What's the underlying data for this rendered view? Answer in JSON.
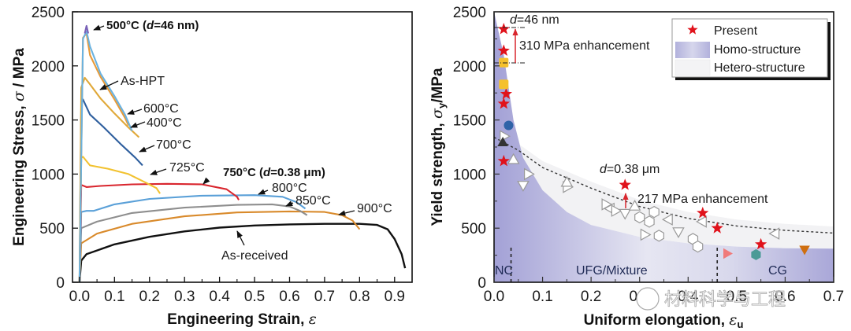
{
  "chart_data": [
    {
      "type": "line",
      "title": "",
      "xlabel": "Engineering Strain, ε",
      "ylabel": "Engineering Stress, σ / MPa",
      "xlim": [
        -0.02,
        0.95
      ],
      "ylim": [
        0,
        2500
      ],
      "xticks": [
        "0.0",
        "0.1",
        "0.2",
        "0.3",
        "0.4",
        "0.5",
        "0.6",
        "0.7",
        "0.8",
        "0.9"
      ],
      "xtick_values": [
        0,
        0.1,
        0.2,
        0.3,
        0.4,
        0.5,
        0.6,
        0.7,
        0.8,
        0.9
      ],
      "yticks": [
        "0",
        "500",
        "1000",
        "1500",
        "2000",
        "2500"
      ],
      "ytick_values": [
        0,
        500,
        1000,
        1500,
        2000,
        2500
      ],
      "grid": false,
      "series": [
        {
          "name": "As-received",
          "label": "As-received",
          "color": "#111111",
          "points": [
            [
              0,
              0
            ],
            [
              0.005,
              200
            ],
            [
              0.02,
              260
            ],
            [
              0.1,
              350
            ],
            [
              0.2,
              420
            ],
            [
              0.3,
              470
            ],
            [
              0.4,
              505
            ],
            [
              0.5,
              525
            ],
            [
              0.6,
              535
            ],
            [
              0.7,
              540
            ],
            [
              0.8,
              540
            ],
            [
              0.85,
              530
            ],
            [
              0.88,
              490
            ],
            [
              0.9,
              400
            ],
            [
              0.92,
              260
            ],
            [
              0.93,
              130
            ]
          ]
        },
        {
          "name": "900°C",
          "label": "900°C",
          "color": "#d98a2b",
          "points": [
            [
              0,
              0
            ],
            [
              0.005,
              360
            ],
            [
              0.05,
              450
            ],
            [
              0.15,
              540
            ],
            [
              0.3,
              610
            ],
            [
              0.45,
              645
            ],
            [
              0.6,
              655
            ],
            [
              0.7,
              650
            ],
            [
              0.75,
              620
            ],
            [
              0.78,
              570
            ],
            [
              0.8,
              490
            ]
          ]
        },
        {
          "name": "850°C",
          "label": "850°C",
          "color": "#8e8e8e",
          "points": [
            [
              0,
              0
            ],
            [
              0.005,
              500
            ],
            [
              0.05,
              560
            ],
            [
              0.15,
              640
            ],
            [
              0.3,
              690
            ],
            [
              0.45,
              715
            ],
            [
              0.55,
              720
            ],
            [
              0.6,
              700
            ],
            [
              0.63,
              660
            ],
            [
              0.65,
              620
            ]
          ]
        },
        {
          "name": "800°C",
          "label": "800°C",
          "color": "#5aa0d8",
          "points": [
            [
              0,
              0
            ],
            [
              0.005,
              650
            ],
            [
              0.02,
              660
            ],
            [
              0.04,
              660
            ],
            [
              0.1,
              720
            ],
            [
              0.2,
              770
            ],
            [
              0.35,
              800
            ],
            [
              0.5,
              805
            ],
            [
              0.58,
              790
            ],
            [
              0.62,
              740
            ],
            [
              0.645,
              680
            ]
          ]
        },
        {
          "name": "750°C",
          "label": "750°C (d=0.38 μm)",
          "color": "#d9262e",
          "points": [
            [
              0,
              0
            ],
            [
              0.005,
              900
            ],
            [
              0.02,
              880
            ],
            [
              0.06,
              890
            ],
            [
              0.15,
              905
            ],
            [
              0.25,
              910
            ],
            [
              0.35,
              905
            ],
            [
              0.42,
              860
            ],
            [
              0.45,
              790
            ],
            [
              0.455,
              760
            ]
          ]
        },
        {
          "name": "725°C",
          "label": "725°C",
          "color": "#f2c230",
          "points": [
            [
              0,
              0
            ],
            [
              0.005,
              1150
            ],
            [
              0.01,
              1160
            ],
            [
              0.03,
              1080
            ],
            [
              0.08,
              1050
            ],
            [
              0.14,
              1000
            ],
            [
              0.19,
              920
            ],
            [
              0.22,
              870
            ],
            [
              0.23,
              820
            ]
          ]
        },
        {
          "name": "700°C",
          "label": "700°C",
          "color": "#2f5f9e",
          "points": [
            [
              0,
              0
            ],
            [
              0.005,
              1650
            ],
            [
              0.01,
              1690
            ],
            [
              0.03,
              1550
            ],
            [
              0.07,
              1430
            ],
            [
              0.12,
              1270
            ],
            [
              0.16,
              1150
            ],
            [
              0.18,
              1080
            ]
          ]
        },
        {
          "name": "400°C",
          "label": "400°C",
          "color": "#e0a838",
          "points": [
            [
              0,
              0
            ],
            [
              0.005,
              1800
            ],
            [
              0.015,
              1890
            ],
            [
              0.03,
              1830
            ],
            [
              0.06,
              1700
            ],
            [
              0.1,
              1560
            ],
            [
              0.14,
              1430
            ],
            [
              0.17,
              1340
            ]
          ]
        },
        {
          "name": "As-HPT",
          "label": "As-HPT",
          "color": "#e79a38",
          "points": [
            [
              0,
              0
            ],
            [
              0.01,
              2260
            ],
            [
              0.02,
              2300
            ],
            [
              0.03,
              2100
            ],
            [
              0.06,
              1900
            ],
            [
              0.1,
              1690
            ],
            [
              0.13,
              1520
            ],
            [
              0.14,
              1450
            ]
          ]
        },
        {
          "name": "600°C",
          "label": "600°C",
          "color": "#6ab2e0",
          "points": [
            [
              0,
              0
            ],
            [
              0.01,
              2250
            ],
            [
              0.02,
              2320
            ],
            [
              0.03,
              2180
            ],
            [
              0.06,
              1930
            ],
            [
              0.1,
              1720
            ],
            [
              0.13,
              1550
            ],
            [
              0.15,
              1400
            ]
          ]
        },
        {
          "name": "500°C",
          "label": "500°C (d=46 nm)",
          "color": "#7a62b8",
          "points": [
            [
              0.015,
              2300
            ],
            [
              0.02,
              2370
            ],
            [
              0.025,
              2300
            ]
          ]
        }
      ],
      "annotations": [
        {
          "text": "500°C (d=46 nm)",
          "bold": true
        },
        {
          "text": "As-HPT",
          "bold": false
        },
        {
          "text": "600°C",
          "bold": false
        },
        {
          "text": "400°C",
          "bold": false
        },
        {
          "text": "700°C",
          "bold": false
        },
        {
          "text": "725°C",
          "bold": false
        },
        {
          "text": "750°C (d=0.38 μm)",
          "bold": true
        },
        {
          "text": "800°C",
          "bold": false
        },
        {
          "text": "850°C",
          "bold": false
        },
        {
          "text": "900°C",
          "bold": false
        },
        {
          "text": "As-received",
          "bold": false
        }
      ]
    },
    {
      "type": "scatter",
      "title": "",
      "xlabel": "Uniform elongation, εu",
      "ylabel": "Yield strength, σy/MPa",
      "xlim": [
        0,
        0.7
      ],
      "ylim": [
        0,
        2500
      ],
      "xticks": [
        "0.0",
        "0.1",
        "0.2",
        "0.3",
        "0.4",
        "0.5",
        "0.6",
        "0.7"
      ],
      "xtick_values": [
        0,
        0.1,
        0.2,
        0.3,
        0.4,
        0.5,
        0.6,
        0.7
      ],
      "yticks": [
        "0",
        "500",
        "1000",
        "1500",
        "2000",
        "2500"
      ],
      "ytick_values": [
        0,
        500,
        1000,
        1500,
        2000,
        2500
      ],
      "grid": false,
      "legend": {
        "position": "top-right",
        "entries": [
          {
            "label": "Present",
            "marker": "star",
            "color": "#e0121b"
          },
          {
            "label": "Homo-structure",
            "marker": "patch",
            "color": "#a9a8d8"
          },
          {
            "label": "Hetero-structure",
            "marker": "patch",
            "color": "#f1f1f3"
          }
        ]
      },
      "regions": [
        {
          "label": "NC",
          "x_boundary": 0.035
        },
        {
          "label": "UFG/Mixture"
        },
        {
          "label": "CG",
          "x_boundary": 0.46
        }
      ],
      "trend_line": {
        "style": "dotted",
        "points": [
          [
            0.0,
            1340
          ],
          [
            0.05,
            1220
          ],
          [
            0.1,
            1060
          ],
          [
            0.2,
            870
          ],
          [
            0.3,
            700
          ],
          [
            0.4,
            590
          ],
          [
            0.5,
            520
          ],
          [
            0.6,
            480
          ],
          [
            0.7,
            455
          ]
        ]
      },
      "homo_upper_boundary": [
        [
          0.0,
          2500
        ],
        [
          0.02,
          2100
        ],
        [
          0.04,
          1500
        ],
        [
          0.06,
          1150
        ],
        [
          0.1,
          850
        ],
        [
          0.15,
          650
        ],
        [
          0.2,
          530
        ],
        [
          0.3,
          420
        ],
        [
          0.4,
          360
        ],
        [
          0.5,
          330
        ],
        [
          0.6,
          315
        ],
        [
          0.7,
          310
        ]
      ],
      "series": [
        {
          "name": "Present",
          "marker": "star",
          "color": "#e0121b",
          "points": [
            [
              0.02,
              2340
            ],
            [
              0.02,
              2140
            ],
            [
              0.025,
              1740
            ],
            [
              0.02,
              1650
            ],
            [
              0.02,
              1120
            ],
            [
              0.27,
              900
            ],
            [
              0.43,
              640
            ],
            [
              0.46,
              500
            ],
            [
              0.55,
              350
            ]
          ]
        },
        {
          "name": "Homo yellow squares",
          "marker": "square",
          "color": "#f5c12d",
          "points": [
            [
              0.02,
              2030
            ],
            [
              0.02,
              1830
            ]
          ]
        },
        {
          "name": "Homo blue circle",
          "marker": "circle",
          "color": "#2f63a8",
          "points": [
            [
              0.03,
              1450
            ]
          ]
        },
        {
          "name": "Homo dark triangle",
          "marker": "triangle-up",
          "color": "#333333",
          "points": [
            [
              0.018,
              1290
            ]
          ]
        },
        {
          "name": "Homo pink triangle",
          "marker": "triangle-right",
          "color": "#f07a7a",
          "points": [
            [
              0.48,
              265
            ]
          ]
        },
        {
          "name": "Homo teal hexagon",
          "marker": "hexagon",
          "color": "#4a9a96",
          "points": [
            [
              0.54,
              255
            ]
          ]
        },
        {
          "name": "Homo orange triangle",
          "marker": "triangle-down",
          "color": "#cf6f10",
          "points": [
            [
              0.64,
              305
            ]
          ]
        },
        {
          "name": "Hetero (open markers)",
          "marker": "open",
          "color": "#999999",
          "points": [
            {
              "m": "triangle-right",
              "p": [
                0.02,
                1350
              ]
            },
            {
              "m": "triangle-up",
              "p": [
                0.04,
                1130
              ]
            },
            {
              "m": "triangle-right",
              "p": [
                0.07,
                1000
              ]
            },
            {
              "m": "triangle-down",
              "p": [
                0.06,
                900
              ]
            },
            {
              "m": "triangle-right",
              "p": [
                0.15,
                880
              ]
            },
            {
              "m": "triangle-up",
              "p": [
                0.15,
                920
              ]
            },
            {
              "m": "triangle-right",
              "p": [
                0.23,
                720
              ]
            },
            {
              "m": "triangle-left",
              "p": [
                0.24,
                680
              ]
            },
            {
              "m": "triangle-right",
              "p": [
                0.25,
                660
              ]
            },
            {
              "m": "triangle-down",
              "p": [
                0.27,
                640
              ]
            },
            {
              "m": "triangle-up",
              "p": [
                0.29,
                700
              ]
            },
            {
              "m": "hexagon",
              "p": [
                0.3,
                600
              ]
            },
            {
              "m": "hexagon",
              "p": [
                0.32,
                560
              ]
            },
            {
              "m": "hexagon",
              "p": [
                0.33,
                650
              ]
            },
            {
              "m": "triangle-left",
              "p": [
                0.36,
                580
              ]
            },
            {
              "m": "triangle-right",
              "p": [
                0.31,
                440
              ]
            },
            {
              "m": "hexagon",
              "p": [
                0.34,
                430
              ]
            },
            {
              "m": "triangle-down",
              "p": [
                0.38,
                470
              ]
            },
            {
              "m": "hexagon",
              "p": [
                0.41,
                400
              ]
            },
            {
              "m": "hexagon",
              "p": [
                0.42,
                330
              ]
            },
            {
              "m": "triangle-left",
              "p": [
                0.43,
                560
              ]
            },
            {
              "m": "triangle-left",
              "p": [
                0.58,
                450
              ]
            }
          ]
        }
      ],
      "annotations": [
        {
          "text": "d=46 nm"
        },
        {
          "text": "310 MPa enhancement",
          "from": 2030,
          "to": 2340
        },
        {
          "text": "d=0.38 μm"
        },
        {
          "text": "217 MPa enhancement",
          "from": 683,
          "to": 900
        }
      ]
    }
  ],
  "labels": {
    "left": {
      "xlabel": "Engineering Strain, ",
      "xlabel_sym": "ε",
      "ylabel": "Engineering Stress, ",
      "ylabel_sym": "σ",
      "ylabel_unit": " / MPa",
      "a500": "500°C (",
      "a500_d": "d",
      "a500_tail": "=46 nm)",
      "aHPT": "As-HPT",
      "a600": "600°C",
      "a400": "400°C",
      "a700": "700°C",
      "a725": "725°C",
      "a750": "750°C (",
      "a750_d": "d",
      "a750_tail": "=0.38 μm)",
      "a800": "800°C",
      "a850": "850°C",
      "a900": "900°C",
      "aRec": "As-received"
    },
    "right": {
      "xlabel": "Uniform elongation, ",
      "xlabel_sym": "ε",
      "xlabel_sub": "u",
      "ylabel": "Yield strength, ",
      "ylabel_sym": "σ",
      "ylabel_sub": "y",
      "ylabel_unit": "/MPa",
      "d46_d": "d",
      "d46_tail": "=46 nm",
      "enh310": "310 MPa enhancement",
      "d038_d": "d",
      "d038_tail": "=0.38 μm",
      "enh217": "217 MPa enhancement",
      "nc": "NC",
      "ufg": "UFG/Mixture",
      "cg": "CG",
      "legend_present": "Present",
      "legend_homo": "Homo-structure",
      "legend_hetero": "Hetero-structure"
    },
    "watermark": "材料科学与工程"
  }
}
